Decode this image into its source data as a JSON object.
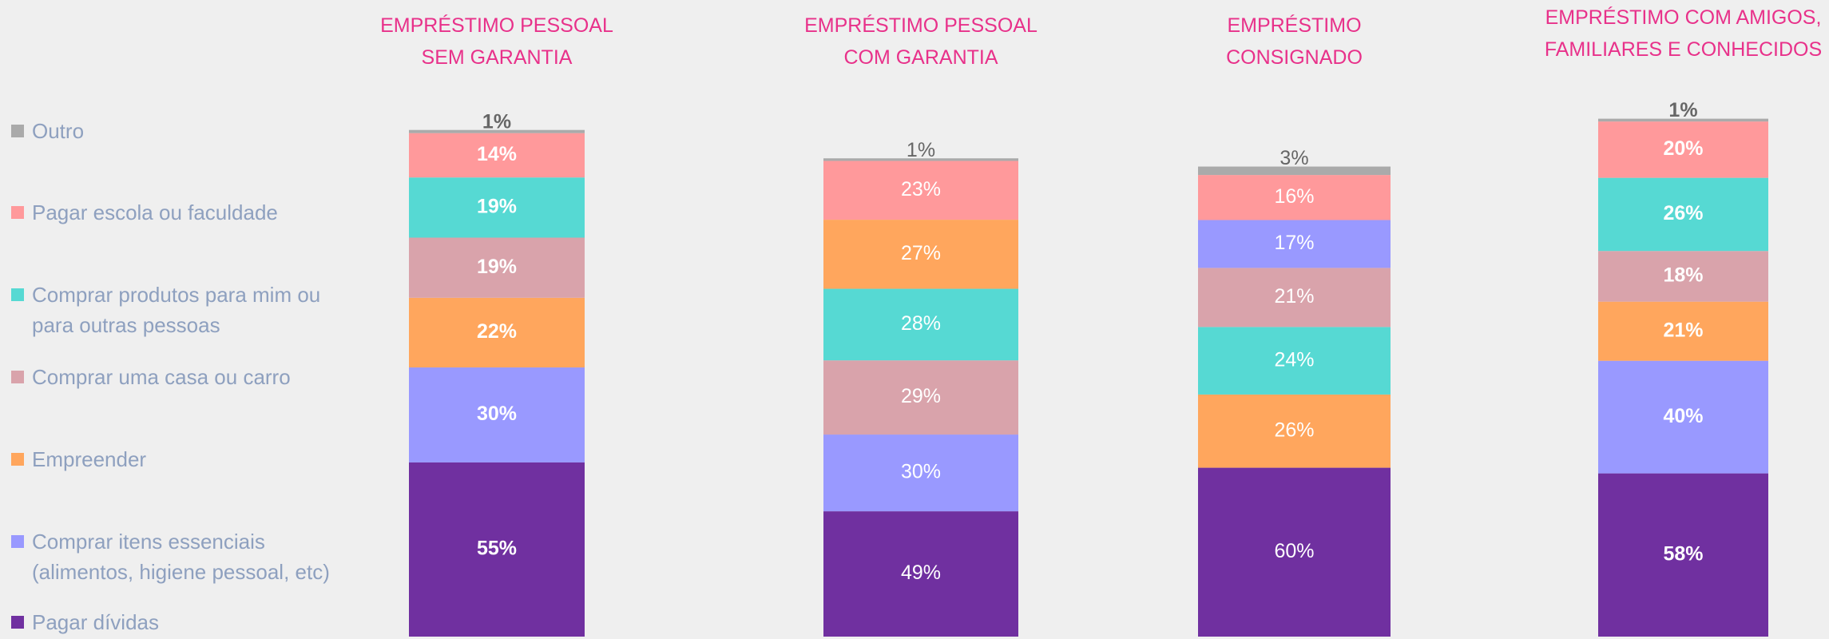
{
  "chart_data": [
    {
      "type": "bar",
      "stacked": true,
      "title": "EMPRÉSTIMO PESSOAL SEM GARANTIA",
      "ylim": [
        0,
        168
      ],
      "value_label_bold": true,
      "series": [
        {
          "name": "Pagar dívidas",
          "color": "#7030a0",
          "values": [
            55
          ],
          "value_labels": [
            "55%"
          ]
        },
        {
          "name": "Comprar itens essenciais (alimentos, higiene pessoal, etc)",
          "color": "#9999ff",
          "values": [
            30
          ],
          "value_labels": [
            "30%"
          ]
        },
        {
          "name": "Empreender",
          "color": "#ffa65d",
          "values": [
            22
          ],
          "value_labels": [
            "22%"
          ]
        },
        {
          "name": "Comprar uma casa ou carro",
          "color": "#d9a3ab",
          "values": [
            19
          ],
          "value_labels": [
            "19%"
          ]
        },
        {
          "name": "Comprar produtos para mim ou para outras pessoas",
          "color": "#56d9d3",
          "values": [
            19
          ],
          "value_labels": [
            "19%"
          ]
        },
        {
          "name": "Pagar escola ou faculdade",
          "color": "#ff999b",
          "values": [
            14
          ],
          "value_labels": [
            "14%"
          ]
        },
        {
          "name": "Outro",
          "color": "#aaaaaa",
          "values": [
            1
          ],
          "value_labels": [
            "1%"
          ]
        }
      ]
    },
    {
      "type": "bar",
      "stacked": true,
      "title": "EMPRÉSTIMO PESSOAL COM GARANTIA",
      "ylim": [
        0,
        208
      ],
      "value_label_bold": false,
      "series": [
        {
          "name": "Pagar dívidas",
          "color": "#7030a0",
          "values": [
            49
          ],
          "value_labels": [
            "49%"
          ]
        },
        {
          "name": "Comprar itens essenciais (alimentos, higiene pessoal, etc)",
          "color": "#9999ff",
          "values": [
            30
          ],
          "value_labels": [
            "30%"
          ]
        },
        {
          "name": "Comprar uma casa ou carro",
          "color": "#d9a3ab",
          "values": [
            29
          ],
          "value_labels": [
            "29%"
          ]
        },
        {
          "name": "Comprar produtos para mim ou para outras pessoas",
          "color": "#56d9d3",
          "values": [
            28
          ],
          "value_labels": [
            "28%"
          ]
        },
        {
          "name": "Empreender",
          "color": "#ffa65d",
          "values": [
            27
          ],
          "value_labels": [
            "27%"
          ]
        },
        {
          "name": "Pagar escola ou faculdade",
          "color": "#ff999b",
          "values": [
            23
          ],
          "value_labels": [
            "23%"
          ]
        },
        {
          "name": "Outro",
          "color": "#aaaaaa",
          "values": [
            1
          ],
          "value_labels": [
            "1%"
          ]
        }
      ]
    },
    {
      "type": "bar",
      "stacked": true,
      "title": "EMPRÉSTIMO CONSIGNADO",
      "ylim": [
        0,
        189
      ],
      "value_label_bold": false,
      "series": [
        {
          "name": "Pagar dívidas",
          "color": "#7030a0",
          "values": [
            60
          ],
          "value_labels": [
            "60%"
          ]
        },
        {
          "name": "Empreender",
          "color": "#ffa65d",
          "values": [
            26
          ],
          "value_labels": [
            "26%"
          ]
        },
        {
          "name": "Comprar produtos para mim ou para outras pessoas",
          "color": "#56d9d3",
          "values": [
            24
          ],
          "value_labels": [
            "24%"
          ]
        },
        {
          "name": "Comprar uma casa ou carro",
          "color": "#d9a3ab",
          "values": [
            21
          ],
          "value_labels": [
            "21%"
          ]
        },
        {
          "name": "Comprar itens essenciais (alimentos, higiene pessoal, etc)",
          "color": "#9999ff",
          "values": [
            17
          ],
          "value_labels": [
            "17%"
          ]
        },
        {
          "name": "Pagar escola ou faculdade",
          "color": "#ff999b",
          "values": [
            16
          ],
          "value_labels": [
            "16%"
          ]
        },
        {
          "name": "Outro",
          "color": "#aaaaaa",
          "values": [
            3
          ],
          "value_labels": [
            "3%"
          ]
        }
      ]
    },
    {
      "type": "bar",
      "stacked": true,
      "title": "EMPRÉSTIMO COM AMIGOS, FAMILIARES E CONHECIDOS",
      "ylim": [
        0,
        189
      ],
      "value_label_bold": true,
      "series": [
        {
          "name": "Pagar dívidas",
          "color": "#7030a0",
          "values": [
            58
          ],
          "value_labels": [
            "58%"
          ]
        },
        {
          "name": "Comprar itens essenciais (alimentos, higiene pessoal, etc)",
          "color": "#9999ff",
          "values": [
            40
          ],
          "value_labels": [
            "40%"
          ]
        },
        {
          "name": "Empreender",
          "color": "#ffa65d",
          "values": [
            21
          ],
          "value_labels": [
            "21%"
          ]
        },
        {
          "name": "Comprar uma casa ou carro",
          "color": "#d9a3ab",
          "values": [
            18
          ],
          "value_labels": [
            "18%"
          ]
        },
        {
          "name": "Comprar produtos para mim ou para outras pessoas",
          "color": "#56d9d3",
          "values": [
            26
          ],
          "value_labels": [
            "26%"
          ]
        },
        {
          "name": "Pagar escola ou faculdade",
          "color": "#ff999b",
          "values": [
            20
          ],
          "value_labels": [
            "20%"
          ]
        },
        {
          "name": "Outro",
          "color": "#aaaaaa",
          "values": [
            1
          ],
          "value_labels": [
            "1%"
          ]
        }
      ]
    }
  ]
}
